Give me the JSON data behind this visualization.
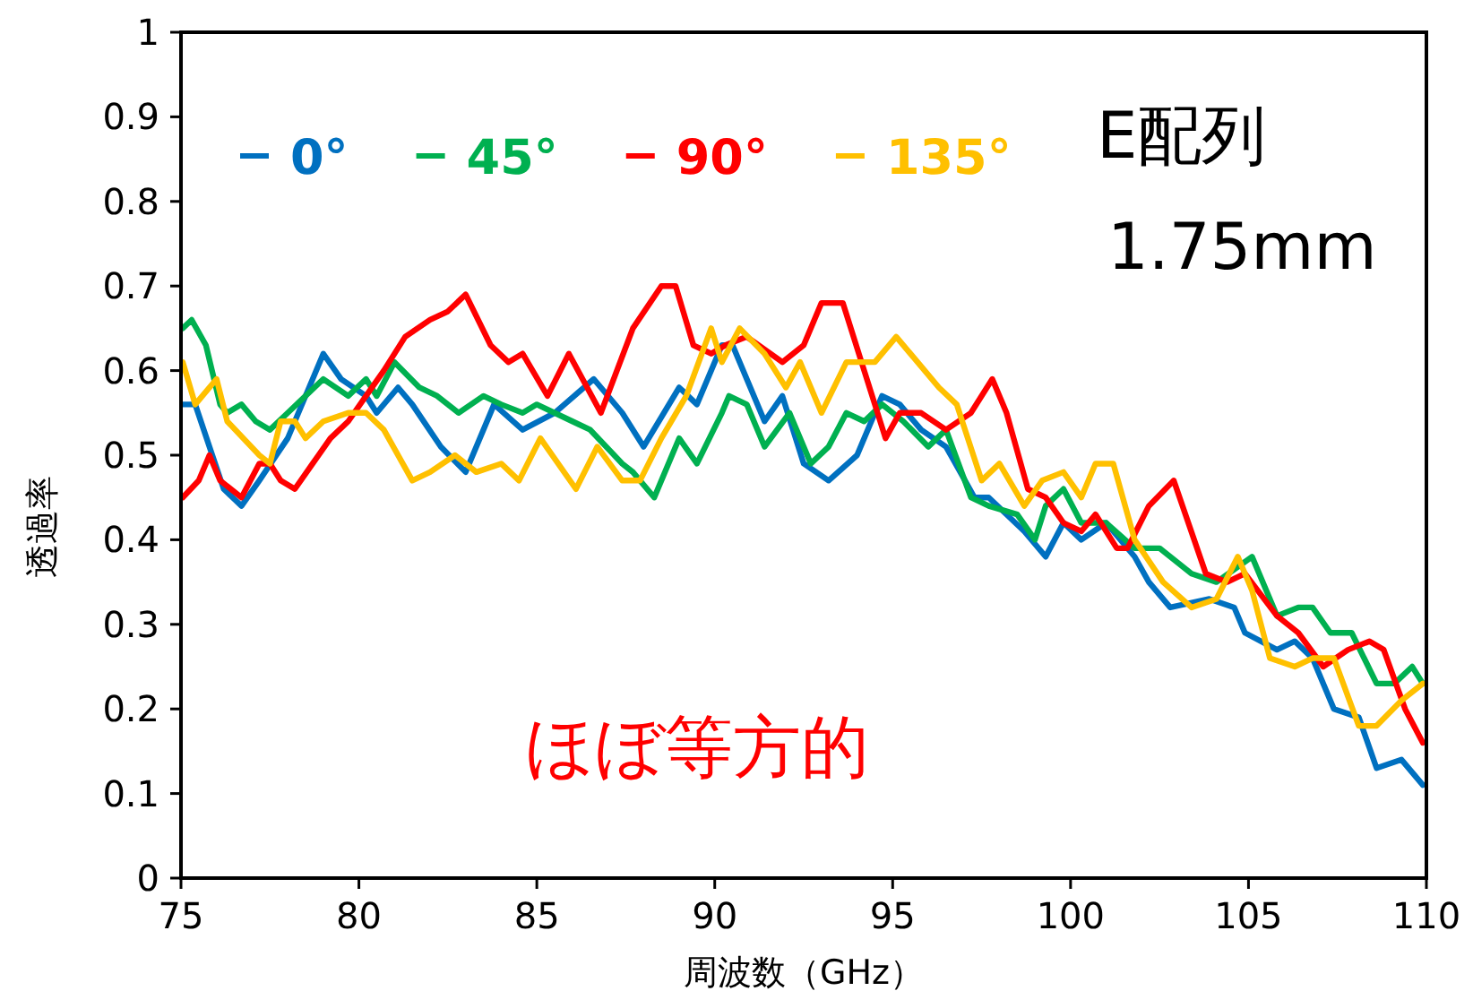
{
  "chart_data": {
    "type": "line",
    "xlabel": "周波数（GHz）",
    "ylabel": "透過率",
    "annotations": [
      "E配列",
      "1.75mm",
      "ほぼ等方的"
    ],
    "xlim": [
      75,
      110
    ],
    "ylim": [
      0,
      1
    ],
    "xticks": [
      75,
      80,
      85,
      90,
      95,
      100,
      105,
      110
    ],
    "yticks": [
      0,
      0.1,
      0.2,
      0.3,
      0.4,
      0.5,
      0.6,
      0.7,
      0.8,
      0.9,
      1
    ],
    "grid": false,
    "legend": "top left",
    "marker": "none",
    "line_style": "solid",
    "series": [
      {
        "name": "0°",
        "color": "#0070c0",
        "x": [
          75.05,
          75.4,
          76.2,
          76.7,
          77.2,
          78.0,
          79.0,
          79.5,
          80.2,
          80.5,
          81.1,
          81.5,
          82.3,
          83.0,
          83.8,
          84.6,
          85.5,
          86.6,
          87.4,
          88.0,
          89.0,
          89.5,
          90.2,
          90.5,
          91.4,
          91.9,
          92.5,
          93.2,
          94.0,
          94.7,
          95.2,
          95.8,
          96.5,
          97.3,
          97.7,
          98.7,
          99.3,
          99.8,
          100.3,
          101.0,
          101.8,
          102.2,
          102.8,
          103.9,
          104.6,
          104.9,
          105.8,
          106.3,
          106.8,
          107.4,
          108.1,
          108.6,
          109.3,
          109.9
        ],
        "values": [
          0.56,
          0.56,
          0.46,
          0.44,
          0.47,
          0.52,
          0.62,
          0.59,
          0.57,
          0.55,
          0.58,
          0.56,
          0.51,
          0.48,
          0.56,
          0.53,
          0.55,
          0.59,
          0.55,
          0.51,
          0.58,
          0.56,
          0.63,
          0.63,
          0.54,
          0.57,
          0.49,
          0.47,
          0.5,
          0.57,
          0.56,
          0.53,
          0.51,
          0.45,
          0.45,
          0.41,
          0.38,
          0.42,
          0.4,
          0.42,
          0.38,
          0.35,
          0.32,
          0.33,
          0.32,
          0.29,
          0.27,
          0.28,
          0.26,
          0.2,
          0.19,
          0.13,
          0.14,
          0.11
        ]
      },
      {
        "name": "45°",
        "color": "#00b050",
        "x": [
          75.05,
          75.3,
          75.7,
          76.1,
          76.3,
          76.7,
          77.1,
          77.5,
          78.0,
          78.5,
          79.0,
          79.7,
          80.2,
          80.5,
          81.0,
          81.7,
          82.2,
          82.8,
          83.5,
          84.0,
          84.6,
          85.0,
          86.0,
          86.5,
          87.4,
          87.7,
          88.3,
          89.0,
          89.5,
          90.2,
          90.4,
          90.9,
          91.4,
          92.1,
          92.7,
          93.2,
          93.7,
          94.2,
          94.7,
          95.3,
          96.0,
          96.5,
          97.2,
          97.7,
          98.5,
          99.0,
          99.3,
          99.8,
          100.3,
          101.0,
          101.8,
          102.5,
          103.4,
          104.1,
          105.1,
          105.8,
          106.4,
          106.8,
          107.3,
          107.9,
          108.6,
          109.1,
          109.6,
          109.9
        ],
        "values": [
          0.65,
          0.66,
          0.63,
          0.56,
          0.55,
          0.56,
          0.54,
          0.53,
          0.55,
          0.57,
          0.59,
          0.57,
          0.59,
          0.57,
          0.61,
          0.58,
          0.57,
          0.55,
          0.57,
          0.56,
          0.55,
          0.56,
          0.54,
          0.53,
          0.49,
          0.48,
          0.45,
          0.52,
          0.49,
          0.55,
          0.57,
          0.56,
          0.51,
          0.55,
          0.49,
          0.51,
          0.55,
          0.54,
          0.56,
          0.54,
          0.51,
          0.53,
          0.45,
          0.44,
          0.43,
          0.4,
          0.44,
          0.46,
          0.42,
          0.42,
          0.39,
          0.39,
          0.36,
          0.35,
          0.38,
          0.31,
          0.32,
          0.32,
          0.29,
          0.29,
          0.23,
          0.23,
          0.25,
          0.23
        ]
      },
      {
        "name": "90°",
        "color": "#ff0000",
        "x": [
          75.05,
          75.5,
          75.8,
          76.1,
          76.7,
          77.2,
          77.5,
          77.8,
          78.2,
          78.7,
          79.2,
          79.7,
          80.2,
          80.7,
          81.3,
          82.0,
          82.5,
          83.0,
          83.7,
          84.2,
          84.6,
          85.3,
          85.9,
          86.8,
          87.7,
          88.5,
          88.9,
          89.4,
          89.9,
          90.3,
          90.9,
          91.9,
          92.5,
          93.0,
          93.6,
          94.2,
          94.8,
          95.2,
          95.8,
          96.5,
          97.2,
          97.8,
          98.2,
          98.8,
          99.3,
          99.8,
          100.3,
          100.7,
          101.3,
          101.6,
          102.2,
          102.9,
          103.8,
          104.4,
          104.9,
          105.8,
          106.4,
          107.1,
          107.8,
          108.4,
          108.8,
          109.4,
          109.9
        ],
        "values": [
          0.45,
          0.47,
          0.5,
          0.47,
          0.45,
          0.49,
          0.49,
          0.47,
          0.46,
          0.49,
          0.52,
          0.54,
          0.57,
          0.6,
          0.64,
          0.66,
          0.67,
          0.69,
          0.63,
          0.61,
          0.62,
          0.57,
          0.62,
          0.55,
          0.65,
          0.7,
          0.7,
          0.63,
          0.62,
          0.63,
          0.64,
          0.61,
          0.63,
          0.68,
          0.68,
          0.6,
          0.52,
          0.55,
          0.55,
          0.53,
          0.55,
          0.59,
          0.55,
          0.46,
          0.45,
          0.42,
          0.41,
          0.43,
          0.39,
          0.39,
          0.44,
          0.47,
          0.36,
          0.35,
          0.36,
          0.31,
          0.29,
          0.25,
          0.27,
          0.28,
          0.27,
          0.2,
          0.16
        ]
      },
      {
        "name": "135°",
        "color": "#ffc000",
        "x": [
          75.05,
          75.4,
          76.0,
          76.3,
          77.2,
          77.5,
          77.8,
          78.2,
          78.5,
          79.0,
          79.7,
          80.2,
          80.7,
          81.5,
          82.0,
          82.7,
          83.3,
          84.0,
          84.5,
          85.1,
          86.1,
          86.7,
          87.4,
          87.9,
          88.5,
          89.2,
          89.9,
          90.2,
          90.7,
          91.4,
          92.0,
          92.4,
          93.0,
          93.7,
          94.5,
          95.1,
          95.7,
          96.3,
          96.8,
          97.5,
          98.0,
          98.7,
          99.2,
          99.8,
          100.3,
          100.7,
          101.2,
          101.8,
          102.6,
          103.4,
          104.1,
          104.7,
          105.1,
          105.6,
          106.3,
          106.8,
          107.4,
          108.1,
          108.6,
          109.3,
          109.9
        ],
        "values": [
          0.61,
          0.56,
          0.59,
          0.54,
          0.5,
          0.49,
          0.54,
          0.54,
          0.52,
          0.54,
          0.55,
          0.55,
          0.53,
          0.47,
          0.48,
          0.5,
          0.48,
          0.49,
          0.47,
          0.52,
          0.46,
          0.51,
          0.47,
          0.47,
          0.52,
          0.57,
          0.65,
          0.61,
          0.65,
          0.62,
          0.58,
          0.61,
          0.55,
          0.61,
          0.61,
          0.64,
          0.61,
          0.58,
          0.56,
          0.47,
          0.49,
          0.44,
          0.47,
          0.48,
          0.45,
          0.49,
          0.49,
          0.4,
          0.35,
          0.32,
          0.33,
          0.38,
          0.34,
          0.26,
          0.25,
          0.26,
          0.26,
          0.18,
          0.18,
          0.21,
          0.23
        ]
      }
    ]
  }
}
